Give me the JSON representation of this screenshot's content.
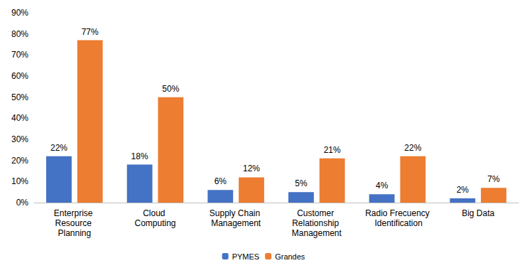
{
  "chart_data": {
    "type": "bar",
    "categories": [
      "Enterprise Resource Planning",
      "Cloud Computing",
      "Supply Chain Management",
      "Customer Relationship Management",
      "Radio Frecuency Identification",
      "Big Data"
    ],
    "series": [
      {
        "name": "PYMES",
        "color": "#4472c4",
        "values": [
          22,
          18,
          6,
          5,
          4,
          2
        ],
        "value_labels": [
          "22%",
          "18%",
          "6%",
          "5%",
          "4%",
          "2%"
        ]
      },
      {
        "name": "Grandes",
        "color": "#ed7d31",
        "values": [
          77,
          50,
          12,
          21,
          22,
          7
        ],
        "value_labels": [
          "77%",
          "50%",
          "12%",
          "21%",
          "22%",
          "7%"
        ]
      }
    ],
    "ylim": [
      0,
      90
    ],
    "yticks": [
      {
        "value": 0,
        "label": "0%"
      },
      {
        "value": 10,
        "label": "10%"
      },
      {
        "value": 20,
        "label": "20%"
      },
      {
        "value": 30,
        "label": "30%"
      },
      {
        "value": 40,
        "label": "40%"
      },
      {
        "value": 50,
        "label": "50%"
      },
      {
        "value": 60,
        "label": "60%"
      },
      {
        "value": 70,
        "label": "70%"
      },
      {
        "value": 80,
        "label": "80%"
      },
      {
        "value": 90,
        "label": "90%"
      }
    ],
    "grid": false,
    "legend": "bottom",
    "data_labels": true
  }
}
